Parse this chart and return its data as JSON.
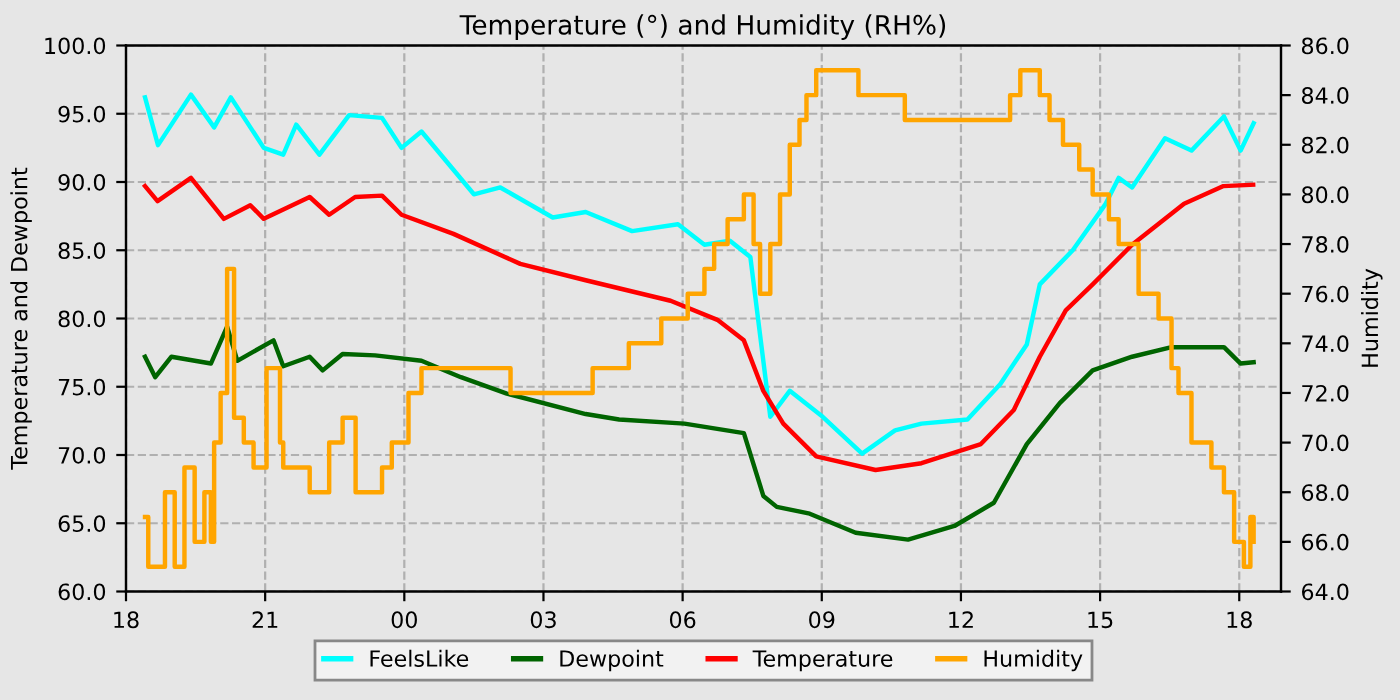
{
  "chart_data": {
    "type": "line",
    "title": "Temperature (°) and Humidity (RH%)",
    "ylabel": "Temperature and Dewpoint",
    "y2label": "Humidity",
    "xlim": [
      18,
      42.9
    ],
    "xticks": [
      {
        "value": 18,
        "label": "18"
      },
      {
        "value": 21,
        "label": "21"
      },
      {
        "value": 24,
        "label": "00"
      },
      {
        "value": 27,
        "label": "03"
      },
      {
        "value": 30,
        "label": "06"
      },
      {
        "value": 33,
        "label": "09"
      },
      {
        "value": 36,
        "label": "12"
      },
      {
        "value": 39,
        "label": "15"
      },
      {
        "value": 42,
        "label": "18"
      }
    ],
    "ylim": [
      60,
      100
    ],
    "yticks": [
      {
        "value": 60,
        "label": "60.0"
      },
      {
        "value": 65,
        "label": "65.0"
      },
      {
        "value": 70,
        "label": "70.0"
      },
      {
        "value": 75,
        "label": "75.0"
      },
      {
        "value": 80,
        "label": "80.0"
      },
      {
        "value": 85,
        "label": "85.0"
      },
      {
        "value": 90,
        "label": "90.0"
      },
      {
        "value": 95,
        "label": "95.0"
      },
      {
        "value": 100,
        "label": "100.0"
      }
    ],
    "y2lim": [
      64,
      86
    ],
    "y2ticks": [
      {
        "value": 64,
        "label": "64.0"
      },
      {
        "value": 66,
        "label": "66.0"
      },
      {
        "value": 68,
        "label": "68.0"
      },
      {
        "value": 70,
        "label": "70.0"
      },
      {
        "value": 72,
        "label": "72.0"
      },
      {
        "value": 74,
        "label": "74.0"
      },
      {
        "value": 76,
        "label": "76.0"
      },
      {
        "value": 78,
        "label": "78.0"
      },
      {
        "value": 80,
        "label": "80.0"
      },
      {
        "value": 82,
        "label": "82.0"
      },
      {
        "value": 84,
        "label": "84.0"
      },
      {
        "value": 86,
        "label": "86.0"
      }
    ],
    "grid": true,
    "legend": "bottom",
    "series": [
      {
        "name": "FeelsLike",
        "color": "#00ffff",
        "x": [
          18.41,
          18.69,
          19.4,
          19.9,
          20.26,
          20.97,
          21.39,
          21.67,
          22.17,
          22.81,
          23.52,
          23.94,
          24.37,
          25.5,
          26.07,
          27.2,
          27.91,
          28.91,
          29.9,
          30.47,
          31.02,
          31.46,
          31.89,
          32.31,
          33.02,
          33.87,
          34.58,
          35.15,
          36.14,
          36.85,
          37.42,
          37.7,
          38.41,
          39.12,
          39.4,
          39.69,
          40.4,
          40.97,
          41.67,
          42.03,
          42.31
        ],
        "values": [
          96.2,
          92.7,
          96.4,
          94.0,
          96.2,
          92.5,
          92.0,
          94.2,
          92.0,
          94.9,
          94.7,
          92.5,
          93.7,
          89.1,
          89.6,
          87.4,
          87.8,
          86.4,
          86.9,
          85.4,
          85.7,
          84.5,
          72.8,
          74.7,
          72.8,
          70.1,
          71.8,
          72.3,
          72.6,
          75.2,
          78.1,
          82.5,
          85.0,
          88.4,
          90.3,
          89.6,
          93.2,
          92.3,
          94.8,
          92.3,
          94.3
        ]
      },
      {
        "name": "Dewpoint",
        "color": "#006400",
        "x": [
          18.41,
          18.63,
          18.98,
          19.83,
          20.18,
          20.4,
          21.18,
          21.39,
          21.96,
          22.24,
          22.67,
          23.37,
          24.37,
          25.22,
          26.21,
          27.91,
          28.63,
          30.04,
          31.32,
          31.74,
          32.03,
          32.74,
          33.73,
          34.86,
          35.86,
          36.71,
          37.42,
          38.13,
          38.84,
          39.69,
          40.54,
          41.67,
          42.03,
          42.31
        ],
        "values": [
          77.2,
          75.7,
          77.2,
          76.7,
          79.4,
          76.9,
          78.4,
          76.5,
          77.2,
          76.2,
          77.4,
          77.3,
          76.9,
          75.7,
          74.5,
          73.0,
          72.6,
          72.3,
          71.6,
          67.0,
          66.2,
          65.7,
          64.3,
          63.8,
          64.8,
          66.5,
          70.8,
          73.8,
          76.2,
          77.2,
          77.9,
          77.9,
          76.7,
          76.8
        ]
      },
      {
        "name": "Temperature",
        "color": "#ff0000",
        "x": [
          18.41,
          18.68,
          19.4,
          20.11,
          20.68,
          20.97,
          21.96,
          22.38,
          22.94,
          23.52,
          23.94,
          25.06,
          26.5,
          27.91,
          29.74,
          30.75,
          31.32,
          31.74,
          32.17,
          32.88,
          34.16,
          35.15,
          36.43,
          37.14,
          37.7,
          38.26,
          38.84,
          39.69,
          40.81,
          41.66,
          42.3
        ],
        "values": [
          89.7,
          88.6,
          90.3,
          87.3,
          88.3,
          87.3,
          88.9,
          87.6,
          88.9,
          89.0,
          87.6,
          86.2,
          84.0,
          82.8,
          81.3,
          79.9,
          78.4,
          74.7,
          72.3,
          69.9,
          68.9,
          69.4,
          70.8,
          73.3,
          77.2,
          80.6,
          82.5,
          85.4,
          88.4,
          89.7,
          89.8
        ]
      },
      {
        "name": "Humidity",
        "color": "#ffa500",
        "type": "step",
        "axis": "y2",
        "x": [
          18.41,
          18.48,
          18.84,
          19.05,
          19.26,
          19.48,
          19.69,
          19.83,
          19.9,
          20.04,
          20.18,
          20.33,
          20.54,
          20.75,
          21.03,
          21.32,
          21.39,
          21.96,
          22.38,
          22.67,
          22.95,
          23.52,
          23.73,
          24.09,
          24.37,
          25.22,
          26.29,
          27.99,
          28.06,
          28.84,
          29.54,
          30.11,
          30.47,
          30.68,
          30.97,
          31.32,
          31.53,
          31.67,
          31.89,
          32.1,
          32.31,
          32.52,
          32.67,
          32.88,
          33.73,
          33.79,
          34.72,
          34.79,
          36.99,
          37.06,
          37.28,
          37.63,
          37.7,
          37.91,
          38.2,
          38.55,
          38.84,
          39.19,
          39.4,
          39.83,
          40.26,
          40.54,
          40.69,
          40.97,
          41.4,
          41.67,
          41.89,
          42.1,
          42.24,
          42.31
        ],
        "values": [
          67,
          65,
          68,
          65,
          69,
          66,
          68,
          66,
          70,
          72,
          77,
          71,
          70,
          69,
          73,
          70,
          69,
          68,
          70,
          71,
          68,
          69,
          70,
          72,
          73,
          73,
          72,
          72,
          73,
          74,
          75,
          76,
          77,
          78,
          79,
          80,
          78,
          76,
          78,
          80,
          82,
          83,
          84,
          85,
          85,
          84,
          84,
          83,
          83,
          84,
          85,
          85,
          84,
          83,
          82,
          81,
          80,
          79,
          78,
          76,
          75,
          73,
          72,
          70,
          69,
          68,
          66,
          65,
          67,
          66
        ]
      }
    ]
  }
}
